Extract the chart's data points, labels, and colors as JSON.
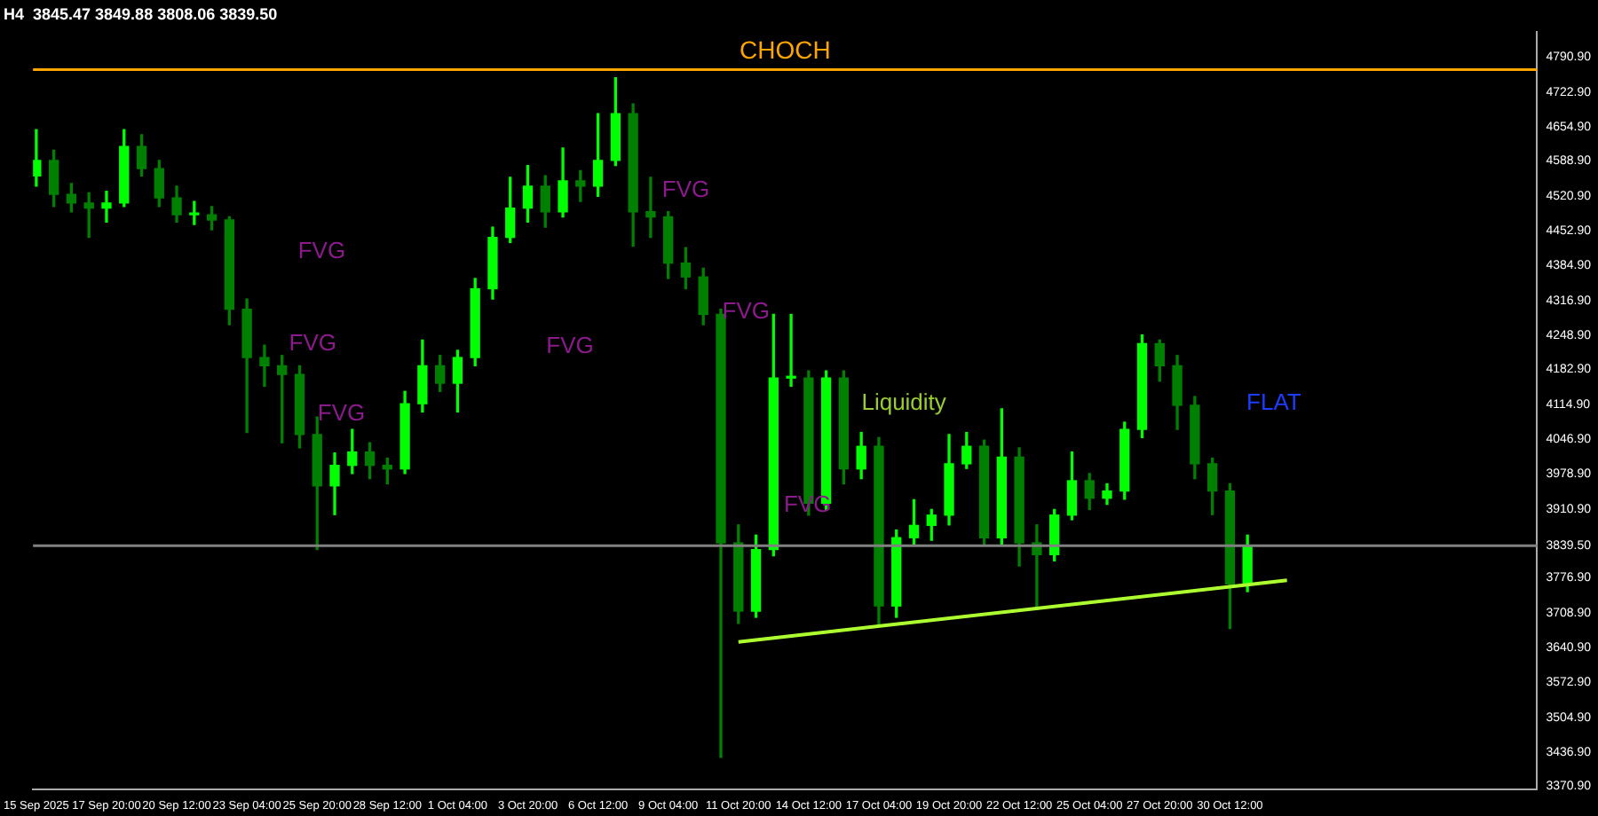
{
  "chart_data": {
    "type": "candlestick",
    "title": "H4  3845.47 3849.88 3808.06 3839.50",
    "xlim": [
      "2025-09-15T01:00",
      "2025-11-11T04:00"
    ],
    "xticks": [
      {
        "value": "2025-09-15T04:00",
        "label": "15 Sep 2025"
      },
      {
        "value": "2025-09-17T20:00",
        "label": "17 Sep 20:00"
      },
      {
        "value": "2025-09-20T12:00",
        "label": "20 Sep 12:00"
      },
      {
        "value": "2025-09-23T04:00",
        "label": "23 Sep 04:00"
      },
      {
        "value": "2025-09-25T20:00",
        "label": "25 Sep 20:00"
      },
      {
        "value": "2025-09-28T12:00",
        "label": "28 Sep 12:00"
      },
      {
        "value": "2025-10-01T04:00",
        "label": "1 Oct 04:00"
      },
      {
        "value": "2025-10-03T20:00",
        "label": "3 Oct 20:00"
      },
      {
        "value": "2025-10-06T12:00",
        "label": "6 Oct 12:00"
      },
      {
        "value": "2025-10-09T04:00",
        "label": "9 Oct 04:00"
      },
      {
        "value": "2025-10-11T20:00",
        "label": "11 Oct 20:00"
      },
      {
        "value": "2025-10-14T12:00",
        "label": "14 Oct 12:00"
      },
      {
        "value": "2025-10-17T04:00",
        "label": "17 Oct 04:00"
      },
      {
        "value": "2025-10-19T20:00",
        "label": "19 Oct 20:00"
      },
      {
        "value": "2025-10-22T12:00",
        "label": "22 Oct 12:00"
      },
      {
        "value": "2025-10-25T04:00",
        "label": "25 Oct 04:00"
      },
      {
        "value": "2025-10-27T20:00",
        "label": "27 Oct 20:00"
      },
      {
        "value": "2025-10-30T12:00",
        "label": "30 Oct 12:00"
      }
    ],
    "ylim": [
      3364,
      4841
    ],
    "yticks": [
      {
        "value": 4790.9,
        "label": "4790.90"
      },
      {
        "value": 4722.9,
        "label": "4722.90"
      },
      {
        "value": 4654.9,
        "label": "4654.90"
      },
      {
        "value": 4588.9,
        "label": "4588.90"
      },
      {
        "value": 4520.9,
        "label": "4520.90"
      },
      {
        "value": 4452.9,
        "label": "4452.90"
      },
      {
        "value": 4384.9,
        "label": "4384.90"
      },
      {
        "value": 4316.9,
        "label": "4316.90"
      },
      {
        "value": 4248.9,
        "label": "4248.90"
      },
      {
        "value": 4182.9,
        "label": "4182.90"
      },
      {
        "value": 4114.9,
        "label": "4114.90"
      },
      {
        "value": 4046.9,
        "label": "4046.90"
      },
      {
        "value": 3978.9,
        "label": "3978.90"
      },
      {
        "value": 3910.9,
        "label": "3910.90"
      },
      {
        "value": 3839.5,
        "label": "3839.50"
      },
      {
        "value": 3776.9,
        "label": "3776.90"
      },
      {
        "value": 3708.9,
        "label": "3708.90"
      },
      {
        "value": 3640.9,
        "label": "3640.90"
      },
      {
        "value": 3572.9,
        "label": "3572.90"
      },
      {
        "value": 3504.9,
        "label": "3504.90"
      },
      {
        "value": 3436.9,
        "label": "3436.90"
      },
      {
        "value": 3370.9,
        "label": "3370.90"
      }
    ],
    "series": [
      {
        "colors": [
          "#00ff00",
          "#008000",
          "#008000",
          "#008000",
          "#00ff00",
          "#00ff00",
          "#008000",
          "#008000",
          "#008000",
          "#00ff00",
          "#008000",
          "#008000",
          "#008000",
          "#008000",
          "#008000",
          "#008000",
          "#008000",
          "#00ff00",
          "#00ff00",
          "#008000",
          "#008000",
          "#00ff00",
          "#00ff00",
          "#008000",
          "#00ff00",
          "#00ff00",
          "#00ff00",
          "#00ff00",
          "#00ff00",
          "#008000",
          "#00ff00",
          "#008000",
          "#00ff00",
          "#00ff00",
          "#008000",
          "#008000",
          "#008000",
          "#008000",
          "#008000",
          "#008000",
          "#008000",
          "#00ff00",
          "#00ff00",
          "#00ff00",
          "#008000",
          "#00ff00",
          "#008000",
          "#00ff00",
          "#008000",
          "#00ff00",
          "#00ff00",
          "#00ff00",
          "#00ff00",
          "#00ff00",
          "#008000",
          "#00ff00",
          "#008000",
          "#008000",
          "#00ff00",
          "#00ff00",
          "#008000",
          "#00ff00",
          "#00ff00",
          "#00ff00",
          "#008000",
          "#008000",
          "#008000",
          "#008000",
          "#008000",
          "#00ff00"
        ],
        "x": [
          "2025-09-15T04:00",
          "2025-09-15T20:00",
          "2025-09-16T12:00",
          "2025-09-17T04:00",
          "2025-09-17T20:00",
          "2025-09-18T12:00",
          "2025-09-19T04:00",
          "2025-09-19T20:00",
          "2025-09-20T12:00",
          "2025-09-21T04:00",
          "2025-09-21T20:00",
          "2025-09-22T12:00",
          "2025-09-23T04:00",
          "2025-09-23T20:00",
          "2025-09-24T12:00",
          "2025-09-25T04:00",
          "2025-09-25T20:00",
          "2025-09-26T12:00",
          "2025-09-27T04:00",
          "2025-09-27T20:00",
          "2025-09-28T12:00",
          "2025-09-29T04:00",
          "2025-09-29T20:00",
          "2025-09-30T12:00",
          "2025-10-01T04:00",
          "2025-10-01T20:00",
          "2025-10-02T12:00",
          "2025-10-03T04:00",
          "2025-10-03T20:00",
          "2025-10-04T12:00",
          "2025-10-05T04:00",
          "2025-10-05T20:00",
          "2025-10-06T12:00",
          "2025-10-07T04:00",
          "2025-10-07T20:00",
          "2025-10-08T12:00",
          "2025-10-09T04:00",
          "2025-10-09T20:00",
          "2025-10-10T12:00",
          "2025-10-11T04:00",
          "2025-10-11T20:00",
          "2025-10-12T12:00",
          "2025-10-13T04:00",
          "2025-10-13T20:00",
          "2025-10-14T12:00",
          "2025-10-15T04:00",
          "2025-10-15T20:00",
          "2025-10-16T12:00",
          "2025-10-17T04:00",
          "2025-10-17T20:00",
          "2025-10-18T12:00",
          "2025-10-19T04:00",
          "2025-10-19T20:00",
          "2025-10-20T12:00",
          "2025-10-21T04:00",
          "2025-10-21T20:00",
          "2025-10-22T12:00",
          "2025-10-23T04:00",
          "2025-10-23T20:00",
          "2025-10-24T12:00",
          "2025-10-25T04:00",
          "2025-10-25T20:00",
          "2025-10-26T12:00",
          "2025-10-27T04:00",
          "2025-10-27T20:00",
          "2025-10-28T12:00",
          "2025-10-29T04:00",
          "2025-10-29T20:00",
          "2025-10-30T12:00",
          "2025-10-31T04:00"
        ],
        "ohlc": [
          [
            4560,
            4650,
            4540,
            4590
          ],
          [
            4590,
            4610,
            4500,
            4524
          ],
          [
            4524,
            4545,
            4490,
            4507
          ],
          [
            4507,
            4527,
            4440,
            4497
          ],
          [
            4497,
            4530,
            4470,
            4507
          ],
          [
            4507,
            4650,
            4500,
            4617
          ],
          [
            4617,
            4640,
            4560,
            4574
          ],
          [
            4574,
            4590,
            4500,
            4517
          ],
          [
            4517,
            4540,
            4470,
            4484
          ],
          [
            4484,
            4510,
            4465,
            4484
          ],
          [
            4484,
            4500,
            4455,
            4474
          ],
          [
            4474,
            4480,
            4270,
            4300
          ],
          [
            4300,
            4320,
            4060,
            4206
          ],
          [
            4206,
            4230,
            4150,
            4190
          ],
          [
            4190,
            4210,
            4040,
            4173
          ],
          [
            4173,
            4190,
            4030,
            4056
          ],
          [
            4056,
            4090,
            3832,
            3956
          ],
          [
            3956,
            4020,
            3900,
            3996
          ],
          [
            3996,
            4066,
            3980,
            4022
          ],
          [
            4022,
            4040,
            3970,
            3996
          ],
          [
            3996,
            4010,
            3960,
            3989
          ],
          [
            3989,
            4140,
            3980,
            4116
          ],
          [
            4116,
            4240,
            4100,
            4190
          ],
          [
            4190,
            4210,
            4140,
            4156
          ],
          [
            4156,
            4220,
            4100,
            4206
          ],
          [
            4206,
            4360,
            4190,
            4340
          ],
          [
            4340,
            4460,
            4320,
            4440
          ],
          [
            4440,
            4557,
            4430,
            4497
          ],
          [
            4497,
            4580,
            4470,
            4540
          ],
          [
            4540,
            4560,
            4460,
            4490
          ],
          [
            4490,
            4614,
            4480,
            4550
          ],
          [
            4550,
            4570,
            4510,
            4540
          ],
          [
            4540,
            4681,
            4520,
            4590
          ],
          [
            4590,
            4751,
            4580,
            4681
          ],
          [
            4681,
            4700,
            4423,
            4490
          ],
          [
            4490,
            4557,
            4440,
            4480
          ],
          [
            4480,
            4490,
            4360,
            4390
          ],
          [
            4390,
            4420,
            4340,
            4363
          ],
          [
            4363,
            4380,
            4270,
            4290
          ],
          [
            4290,
            4300,
            3427,
            3845
          ],
          [
            3845,
            3880,
            3688,
            3712
          ],
          [
            3712,
            3860,
            3700,
            3832
          ],
          [
            3832,
            4290,
            3820,
            4166
          ],
          [
            4166,
            4290,
            4150,
            4166
          ],
          [
            4166,
            4180,
            3899,
            3922
          ],
          [
            3922,
            4180,
            3910,
            4166
          ],
          [
            4166,
            4180,
            3960,
            3989
          ],
          [
            3989,
            4060,
            3970,
            4033
          ],
          [
            4033,
            4050,
            3682,
            3722
          ],
          [
            3722,
            3870,
            3700,
            3855
          ],
          [
            3855,
            3929,
            3840,
            3879
          ],
          [
            3879,
            3910,
            3850,
            3899
          ],
          [
            3899,
            4056,
            3880,
            3999
          ],
          [
            3999,
            4060,
            3990,
            4033
          ],
          [
            4033,
            4045,
            3840,
            3855
          ],
          [
            3855,
            4106,
            3840,
            4012
          ],
          [
            4012,
            4030,
            3800,
            3845
          ],
          [
            3845,
            3880,
            3715,
            3822
          ],
          [
            3822,
            3910,
            3810,
            3899
          ],
          [
            3899,
            4022,
            3890,
            3966
          ],
          [
            3966,
            3980,
            3910,
            3932
          ],
          [
            3932,
            3960,
            3920,
            3946
          ],
          [
            3946,
            4080,
            3930,
            4066
          ],
          [
            4066,
            4250,
            4050,
            4233
          ],
          [
            4233,
            4240,
            4160,
            4190
          ],
          [
            4190,
            4210,
            4066,
            4113
          ],
          [
            4113,
            4130,
            3970,
            3999
          ],
          [
            3999,
            4010,
            3900,
            3946
          ],
          [
            3946,
            3960,
            3678,
            3765
          ],
          [
            3765,
            3860,
            3750,
            3839.5
          ]
        ]
      },
      {
        "type": "line",
        "color": "#adff2f",
        "x": [
          "2025-10-11T20:00",
          "2025-11-01T16:00"
        ],
        "values": [
          3652,
          3772
        ]
      }
    ],
    "ref_lines": [
      {
        "axis": "y",
        "value": 4767,
        "label": "CHOCH",
        "color": "#ffa500"
      },
      {
        "axis": "y",
        "value": 3839.5,
        "color": "#808080"
      }
    ],
    "annotations": [
      "FVG",
      "FVG",
      "FVG",
      "FVG",
      "FVG",
      "FVG",
      "FVG",
      "Liquidity",
      "FLAT"
    ],
    "grid": false,
    "legend": false
  }
}
